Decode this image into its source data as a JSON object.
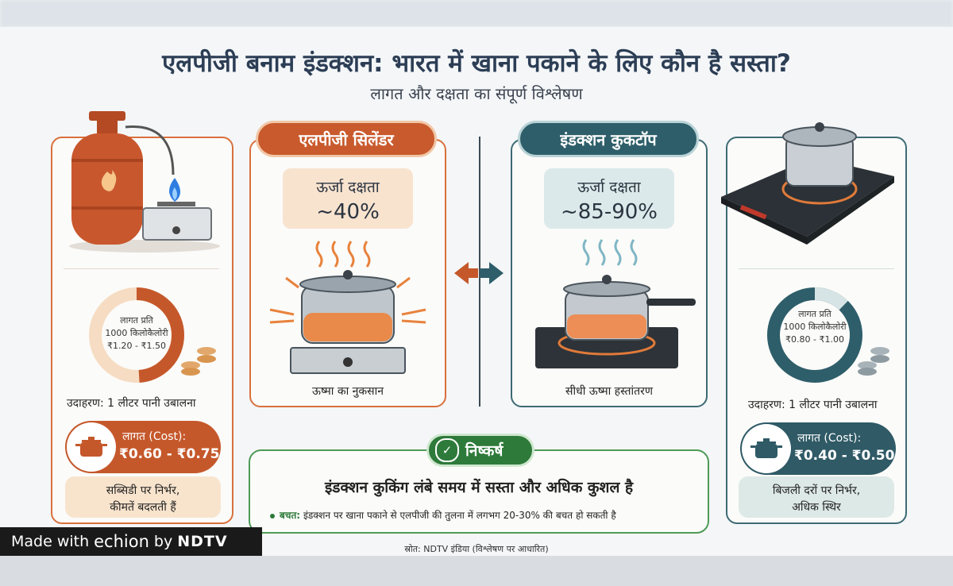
{
  "title": "एलपीजी बनाम इंडक्शन: भारत में खाना पकाने के लिए कौन है सस्ता?",
  "subtitle": "लागत और दक्षता का संपूर्ण विश्लेषण",
  "lpg": {
    "header": "एलपीजी सिलेंडर",
    "efficiency_label": "ऊर्जा दक्षता",
    "efficiency_value": "~40%",
    "efficiency_fraction": 0.4,
    "caption": "ऊष्मा का नुकसान",
    "cost_ring": [
      "लागत प्रति",
      "1000 किलोकैलोरी",
      "₹1.20 - ₹1.50"
    ],
    "example": "उदाहरण: 1 लीटर पानी उबालना",
    "cost_label": "लागत (Cost):",
    "cost_value": "₹0.60 - ₹0.75",
    "note": [
      "सब्सिडी पर निर्भर,",
      "कीमतें बदलती हैं"
    ],
    "color": "#c95a2d"
  },
  "induction": {
    "header": "इंडक्शन कुकटॉप",
    "efficiency_label": "ऊर्जा दक्षता",
    "efficiency_value": "~85-90%",
    "caption": "सीधी ऊष्मा हस्तांतरण",
    "cost_ring": [
      "लागत प्रति",
      "1000 किलोकैलोरी",
      "₹0.80 - ₹1.00"
    ],
    "example": "उदाहरण: 1 लीटर पानी उबालना",
    "cost_label": "लागत (Cost):",
    "cost_value": "₹0.40 - ₹0.50",
    "note": [
      "बिजली दरों पर निर्भर,",
      "अधिक स्थिर"
    ],
    "color": "#2e5e6a"
  },
  "conclusion": {
    "badge": "निष्कर्ष",
    "main": "इंडक्शन कुकिंग लंबे समय में सस्ता और अधिक कुशल है",
    "bullet_label": "बचत:",
    "bullet_text": "इंडक्शन पर खाना पकाने से एलपीजी की तुलना में लगभग 20-30% की बचत हो सकती है"
  },
  "source": "स्रोत: NDTV इंडिया (विश्लेषण पर आधारित)",
  "watermark": {
    "prefix": "Made with",
    "echion": "echion",
    "by": "by",
    "brand": "NDTV"
  },
  "icons": [
    "gas-cylinder-icon",
    "gas-stove-icon",
    "induction-cooktop-icon",
    "pot-icon",
    "coins-icon",
    "check-icon",
    "swap-arrows-icon"
  ]
}
